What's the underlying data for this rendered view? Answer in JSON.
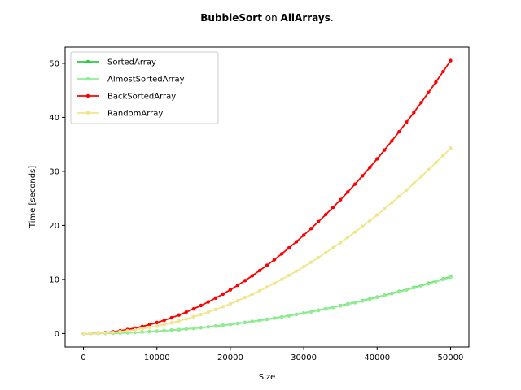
{
  "chart_data": {
    "type": "line",
    "title": {
      "algorithm": "BubbleSort",
      "connector": " on ",
      "dataset": "AllArrays",
      "suffix": "."
    },
    "xlabel": "Size",
    "ylabel": "Time [seconds]",
    "xlim": [
      -2500,
      52500
    ],
    "ylim": [
      -2.5,
      53
    ],
    "xticks": [
      0,
      10000,
      20000,
      30000,
      40000,
      50000
    ],
    "yticks": [
      0,
      10,
      20,
      30,
      40,
      50
    ],
    "grid": false,
    "legend": "top-left",
    "x_start": 0,
    "x_step": 1000,
    "x_end": 50000,
    "series": [
      {
        "name": "SortedArray",
        "color": "#2ecc40",
        "final_y": 10.5,
        "exponent": 2.0
      },
      {
        "name": "AlmostSortedArray",
        "color": "#90ee90",
        "final_y": 10.4,
        "exponent": 2.0
      },
      {
        "name": "BackSortedArray",
        "color": "#ff0000",
        "final_y": 50.5,
        "exponent": 2.0
      },
      {
        "name": "RandomArray",
        "color": "#f0e68c",
        "final_y": 34.3,
        "exponent": 2.0
      }
    ]
  }
}
